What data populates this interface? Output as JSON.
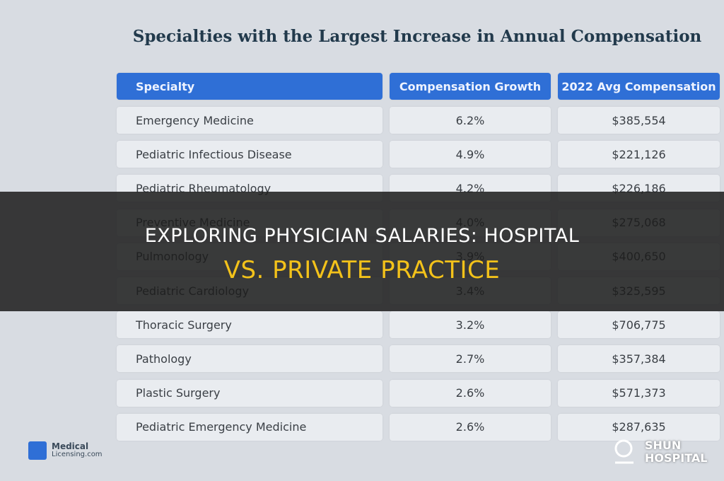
{
  "table": {
    "title": "Specialties with the Largest Increase in Annual Compensation",
    "header": [
      "Specialty",
      "Compensation Growth",
      "2022 Avg Compensation"
    ],
    "rows": [
      [
        "Emergency Medicine",
        "6.2%",
        "$385,554"
      ],
      [
        "Pediatric Infectious Disease",
        "4.9%",
        "$221,126"
      ],
      [
        "Pediatric Rheumatology",
        "4.2%",
        "$226,186"
      ],
      [
        "Preventive Medicine",
        "4.0%",
        "$275,068"
      ],
      [
        "Pulmonology",
        "3.9%",
        "$400,650"
      ],
      [
        "Pediatric Cardiology",
        "3.4%",
        "$325,595"
      ],
      [
        "Thoracic Surgery",
        "3.2%",
        "$706,775"
      ],
      [
        "Pathology",
        "2.7%",
        "$357,384"
      ],
      [
        "Plastic Surgery",
        "2.6%",
        "$571,373"
      ],
      [
        "Pediatric Emergency Medicine",
        "2.6%",
        "$287,635"
      ]
    ]
  },
  "source_logo": {
    "line1": "Medical",
    "line2": "Licensing.com"
  },
  "banner": {
    "line1": "EXPLORING PHYSICIAN SALARIES: HOSPITAL",
    "line2": "VS. PRIVATE PRACTICE"
  },
  "brand": {
    "line1": "SHUN",
    "line2": "HOSPITAL"
  }
}
